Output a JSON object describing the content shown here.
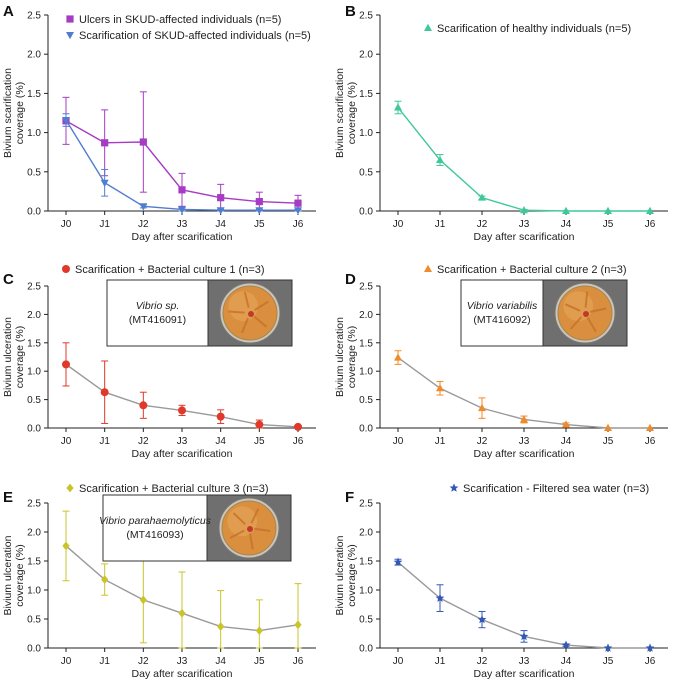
{
  "chart_data": [
    {
      "panel": "A",
      "type": "line",
      "x": [
        "J0",
        "J1",
        "J2",
        "J3",
        "J4",
        "J5",
        "J6"
      ],
      "xlabel": "Day after scarification",
      "ylabel": [
        "Bivium scarification",
        "coverage (%)"
      ],
      "ylim": [
        0,
        2.5
      ],
      "yticks": [
        "0.0",
        "0.5",
        "1.0",
        "1.5",
        "2.0",
        "2.5"
      ],
      "legend_position": "top-center",
      "series": [
        {
          "name": "Ulcers in SKUD-affected individuals (n=5)",
          "color": "#a63cc4",
          "marker": "square",
          "values": [
            1.15,
            0.87,
            0.88,
            0.27,
            0.17,
            0.12,
            0.1
          ],
          "errors": [
            0.3,
            0.42,
            0.64,
            0.21,
            0.17,
            0.12,
            0.1
          ]
        },
        {
          "name": "Scarification of SKUD-affected individuals (n=5)",
          "color": "#4f7dd1",
          "marker": "triangle-down",
          "values": [
            1.16,
            0.36,
            0.06,
            0.02,
            0.01,
            0.01,
            0.01
          ],
          "errors": [
            0.08,
            0.17,
            0.02,
            0.02,
            0.01,
            0.01,
            0.01
          ]
        }
      ]
    },
    {
      "panel": "B",
      "type": "line",
      "x": [
        "J0",
        "J1",
        "J2",
        "J3",
        "J4",
        "J5",
        "J6"
      ],
      "xlabel": "Day after scarification",
      "ylabel": [
        "Bivium scarification",
        "coverage (%)"
      ],
      "ylim": [
        0,
        2.5
      ],
      "yticks": [
        "0.0",
        "0.5",
        "1.0",
        "1.5",
        "2.0",
        "2.5"
      ],
      "legend_position": "top-center",
      "series": [
        {
          "name": "Scarification of healthy individuals (n=5)",
          "color": "#3ec99a",
          "marker": "triangle-up",
          "values": [
            1.32,
            0.65,
            0.17,
            0.01,
            0.0,
            0.0,
            0.0
          ],
          "errors": [
            0.08,
            0.07,
            0.02,
            0.01,
            0.0,
            0.0,
            0.0
          ]
        }
      ]
    },
    {
      "panel": "C",
      "type": "line",
      "x": [
        "J0",
        "J1",
        "J2",
        "J3",
        "J4",
        "J5",
        "J6"
      ],
      "xlabel": "Day after scarification",
      "ylabel": [
        "Bivium ulceration",
        "coverage (%)"
      ],
      "ylim": [
        0,
        2.5
      ],
      "yticks": [
        "0.0",
        "0.5",
        "1.0",
        "1.5",
        "2.0",
        "2.5"
      ],
      "legend_position": "top-center",
      "line_color": "#9a9a9a",
      "inset": {
        "species": "Vibrio sp.",
        "accession": "(MT416091)"
      },
      "series": [
        {
          "name": "Scarification + Bacterial culture 1 (n=3)",
          "color": "#e0392b",
          "marker": "circle",
          "values": [
            1.12,
            0.63,
            0.4,
            0.31,
            0.2,
            0.06,
            0.02
          ],
          "errors": [
            0.38,
            0.55,
            0.23,
            0.09,
            0.12,
            0.08,
            0.02
          ]
        }
      ]
    },
    {
      "panel": "D",
      "type": "line",
      "x": [
        "J0",
        "J1",
        "J2",
        "J3",
        "J4",
        "J5",
        "J6"
      ],
      "xlabel": "Day after scarification",
      "ylabel": [
        "Bivium ulceration",
        "coverage (%)"
      ],
      "ylim": [
        0,
        2.5
      ],
      "yticks": [
        "0.0",
        "0.5",
        "1.0",
        "1.5",
        "2.0",
        "2.5"
      ],
      "legend_position": "top-center",
      "line_color": "#9a9a9a",
      "inset": {
        "species": "Vibrio variabilis",
        "accession": "(MT416092)"
      },
      "series": [
        {
          "name": "Scarification + Bacterial culture 2 (n=3)",
          "color": "#f08a2a",
          "marker": "triangle-up",
          "values": [
            1.24,
            0.7,
            0.35,
            0.15,
            0.06,
            0.0,
            0.0
          ],
          "errors": [
            0.12,
            0.12,
            0.18,
            0.06,
            0.03,
            0.0,
            0.0
          ]
        }
      ]
    },
    {
      "panel": "E",
      "type": "line",
      "x": [
        "J0",
        "J1",
        "J2",
        "J3",
        "J4",
        "J5",
        "J6"
      ],
      "xlabel": "Day after scarification",
      "ylabel": [
        "Bivium ulceration",
        "coverage (%)"
      ],
      "ylim": [
        0,
        2.5
      ],
      "yticks": [
        "0.0",
        "0.5",
        "1.0",
        "1.5",
        "2.0",
        "2.5"
      ],
      "legend_position": "top-center",
      "line_color": "#9a9a9a",
      "inset": {
        "species": "Vibrio parahaemolyticus",
        "accession": "(MT416093)"
      },
      "series": [
        {
          "name": "Scarification + Bacterial culture 3 (n=3)",
          "color": "#c9c42a",
          "marker": "diamond",
          "values": [
            1.76,
            1.18,
            0.83,
            0.6,
            0.37,
            0.3,
            0.4
          ],
          "errors": [
            0.6,
            0.27,
            0.74,
            0.71,
            0.62,
            0.53,
            0.71
          ]
        }
      ]
    },
    {
      "panel": "F",
      "type": "line",
      "x": [
        "J0",
        "J1",
        "J2",
        "J3",
        "J4",
        "J5",
        "J6"
      ],
      "xlabel": "Day after scarification",
      "ylabel": [
        "Bivium ulceration",
        "coverage (%)"
      ],
      "ylim": [
        0,
        2.5
      ],
      "yticks": [
        "0.0",
        "0.5",
        "1.0",
        "1.5",
        "2.0",
        "2.5"
      ],
      "legend_position": "top-center",
      "line_color": "#9a9a9a",
      "series": [
        {
          "name": "Scarification - Filtered sea water (n=3)",
          "color": "#3358b8",
          "marker": "star",
          "values": [
            1.48,
            0.86,
            0.49,
            0.2,
            0.05,
            0.0,
            0.0
          ],
          "errors": [
            0.05,
            0.23,
            0.14,
            0.1,
            0.02,
            0.0,
            0.0
          ]
        }
      ]
    }
  ]
}
